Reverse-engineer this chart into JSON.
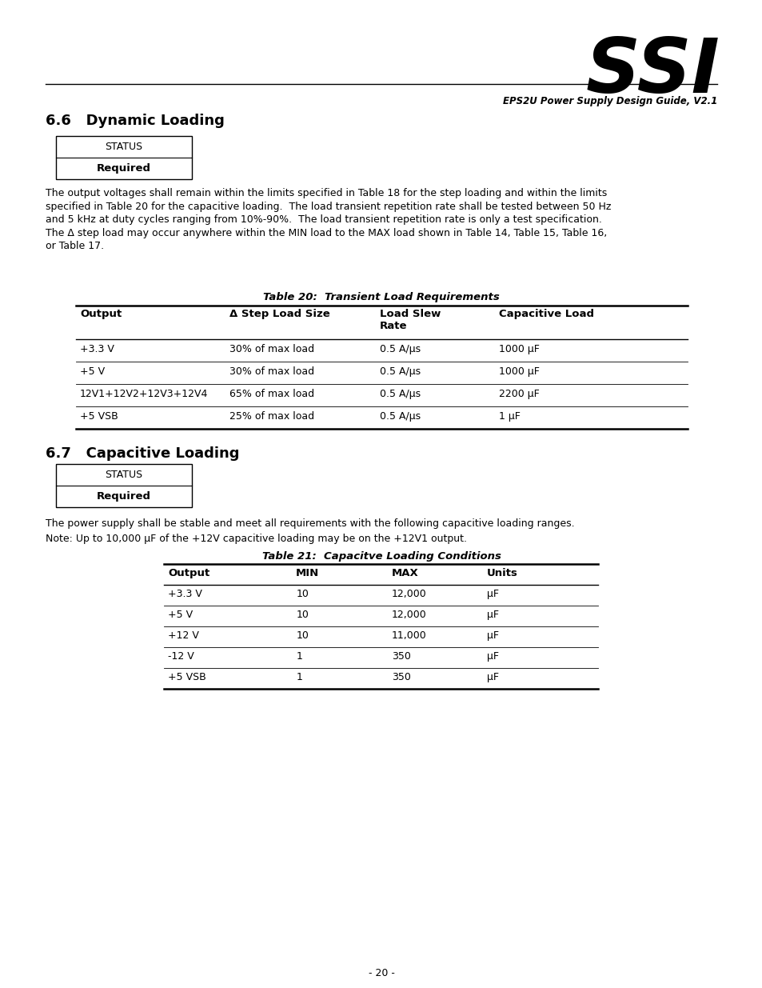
{
  "page_bg": "#ffffff",
  "logo_text": "SSI",
  "header_subtitle": "EPS2U Power Supply Design Guide, V2.1",
  "section1_title": "6.6   Dynamic Loading",
  "section2_title": "6.7   Capacitive Loading",
  "status_label": "STATUS",
  "required_label": "Required",
  "para1_lines": [
    "The output voltages shall remain within the limits specified in Table 18 for the step loading and within the limits",
    "specified in Table 20 for the capacitive loading.  The load transient repetition rate shall be tested between 50 Hz",
    "and 5 kHz at duty cycles ranging from 10%-90%.  The load transient repetition rate is only a test specification.",
    "The Δ step load may occur anywhere within the MIN load to the MAX load shown in Table 14, Table 15, Table 16,",
    "or Table 17."
  ],
  "table1_title": "Table 20:  Transient Load Requirements",
  "table1_headers": [
    "Output",
    "Δ Step Load Size",
    "Load Slew\nRate",
    "Capacitive Load"
  ],
  "table1_rows": [
    [
      "+3.3 V",
      "30% of max load",
      "0.5 A/μs",
      "1000 μF"
    ],
    [
      "+5 V",
      "30% of max load",
      "0.5 A/μs",
      "1000 μF"
    ],
    [
      "12V1+12V2+12V3+12V4",
      "65% of max load",
      "0.5 A/μs",
      "2200 μF"
    ],
    [
      "+5 VSB",
      "25% of max load",
      "0.5 A/μs",
      "1 μF"
    ]
  ],
  "para2": "The power supply shall be stable and meet all requirements with the following capacitive loading ranges.",
  "para3": "Note: Up to 10,000 μF of the +12V capacitive loading may be on the +12V1 output.",
  "table2_title": "Table 21:  Capacitve Loading Conditions",
  "table2_headers": [
    "Output",
    "MIN",
    "MAX",
    "Units"
  ],
  "table2_rows": [
    [
      "+3.3 V",
      "10",
      "12,000",
      "μF"
    ],
    [
      "+5 V",
      "10",
      "12,000",
      "μF"
    ],
    [
      "+12 V",
      "10",
      "11,000",
      "μF"
    ],
    [
      "-12 V",
      "1",
      "350",
      "μF"
    ],
    [
      "+5 VSB",
      "1",
      "350",
      "μF"
    ]
  ],
  "footer_text": "- 20 -"
}
